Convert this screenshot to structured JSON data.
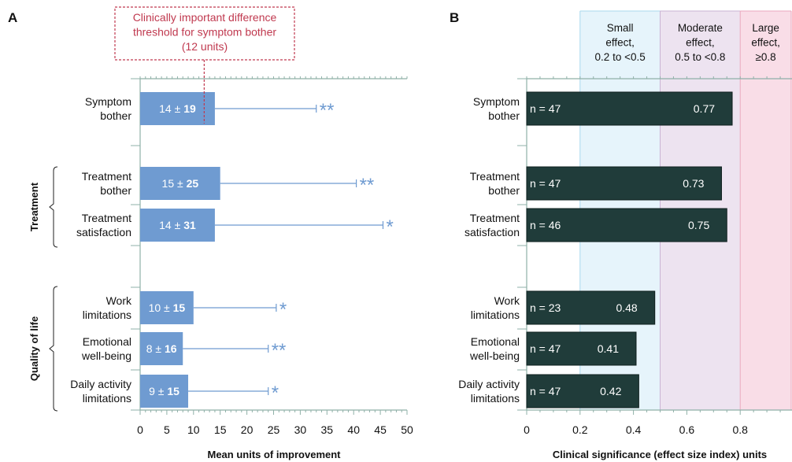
{
  "figure": {
    "panel_a_letter": "A",
    "panel_b_letter": "B",
    "group_treatment": "Treatment",
    "group_qol": "Quality of life"
  },
  "chart_data": [
    {
      "type": "bar",
      "orientation": "horizontal",
      "panel": "A",
      "categories": [
        [
          "Symptom",
          "bother"
        ],
        [
          "Treatment",
          "bother"
        ],
        [
          "Treatment",
          "satisfaction"
        ],
        [
          "Work",
          "limitations"
        ],
        [
          "Emotional",
          "well-being"
        ],
        [
          "Daily activity",
          "limitations"
        ]
      ],
      "values": [
        14,
        15,
        14,
        10,
        8,
        9
      ],
      "sd": [
        19,
        25,
        31,
        15,
        16,
        15
      ],
      "error_bar_ends": [
        33,
        40.5,
        45.5,
        25.5,
        24,
        24
      ],
      "significance": [
        "**",
        "**",
        "*",
        "*",
        "**",
        "*"
      ],
      "bar_labels": [
        {
          "mean": "14",
          "pm": "±",
          "sd": "19"
        },
        {
          "mean": "15",
          "pm": "±",
          "sd": "25"
        },
        {
          "mean": "14",
          "pm": "±",
          "sd": "31"
        },
        {
          "mean": "10",
          "pm": "±",
          "sd": "15"
        },
        {
          "mean": "8",
          "pm": "±",
          "sd": "16"
        },
        {
          "mean": "9",
          "pm": "±",
          "sd": "15"
        }
      ],
      "threshold": {
        "value": 12,
        "label": [
          "Clinically important difference",
          "threshold for symptom bother",
          "(12 units)"
        ]
      },
      "xlim": [
        0,
        50
      ],
      "xticks": [
        0,
        5,
        10,
        15,
        20,
        25,
        30,
        35,
        40,
        45,
        50
      ],
      "xlabel": "Mean units of improvement",
      "colors": {
        "bar": "#6f9bd1",
        "bar_text": "#ffffff",
        "error": "#6f9bd1",
        "threshold": "#c0394f",
        "axis": "#8fb0a8"
      }
    },
    {
      "type": "bar",
      "orientation": "horizontal",
      "panel": "B",
      "categories": [
        [
          "Symptom",
          "bother"
        ],
        [
          "Treatment",
          "bother"
        ],
        [
          "Treatment",
          "satisfaction"
        ],
        [
          "Work",
          "limitations"
        ],
        [
          "Emotional",
          "well-being"
        ],
        [
          "Daily activity",
          "limitations"
        ]
      ],
      "values": [
        0.77,
        0.73,
        0.75,
        0.48,
        0.41,
        0.42
      ],
      "value_labels": [
        "0.77",
        "0.73",
        "0.75",
        "0.48",
        "0.41",
        "0.42"
      ],
      "n_labels": [
        "n = 47",
        "n = 47",
        "n = 46",
        "n = 23",
        "n = 47",
        "n = 47"
      ],
      "xlim": [
        0,
        1
      ],
      "xticks": [
        0,
        0.2,
        0.4,
        0.6,
        0.8
      ],
      "xtick_labels": [
        "0",
        "0.2",
        "0.4",
        "0.6",
        "0.8"
      ],
      "xlabel": "Clinical significance (effect size index) units",
      "effect_bands": [
        {
          "from": 0.2,
          "to": 0.5,
          "label": [
            "Small",
            "effect,",
            "0.2 to <0.5"
          ],
          "fill": "#e6f4fb",
          "stroke": "#a9d8ee"
        },
        {
          "from": 0.5,
          "to": 0.8,
          "label": [
            "Moderate",
            "effect,",
            "0.5 to <0.8"
          ],
          "fill": "#ede3f0",
          "stroke": "#c9b3d3"
        },
        {
          "from": 0.8,
          "to": 1.0,
          "label": [
            "Large",
            "effect,",
            "≥0.8"
          ],
          "fill": "#f9dde7",
          "stroke": "#eaa8bf"
        }
      ],
      "colors": {
        "bar": "#203c3a",
        "bar_text": "#ffffff",
        "axis": "#8fb0a8"
      }
    }
  ]
}
